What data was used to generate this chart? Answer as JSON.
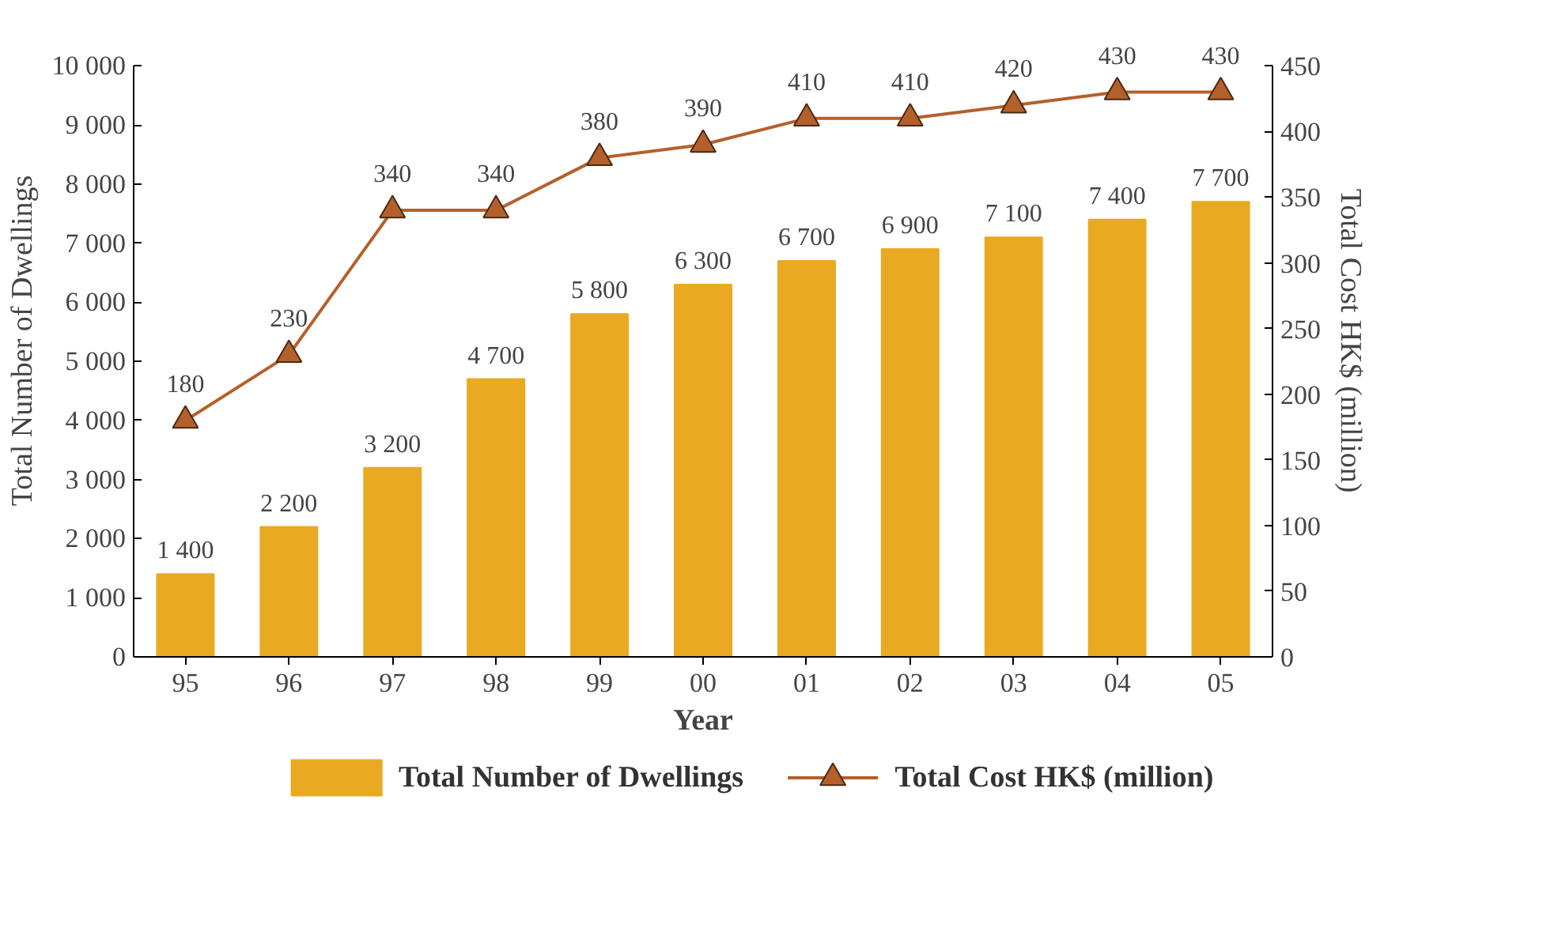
{
  "chart_data": {
    "type": "bar",
    "xlabel": "Year",
    "ylabel": "Total Number of Dwellings",
    "y2label": "Total Cost HK$ (million)",
    "categories": [
      "95",
      "96",
      "97",
      "98",
      "99",
      "00",
      "01",
      "02",
      "03",
      "04",
      "05"
    ],
    "series": [
      {
        "name": "Total Number of Dwellings",
        "color": "#e9aa22",
        "values": [
          1400,
          2200,
          3200,
          4700,
          5800,
          6300,
          6700,
          6900,
          7100,
          7400,
          7700
        ],
        "value_labels": [
          "1 400",
          "2 200",
          "3 200",
          "4 700",
          "5 800",
          "6 300",
          "6 700",
          "6 900",
          "7 100",
          "7 400",
          "7 700"
        ]
      },
      {
        "name": "Total Cost HK$ (million)",
        "type": "line",
        "axis": "y2",
        "color": "#b4602c",
        "marker": "triangle",
        "values": [
          180,
          230,
          340,
          340,
          380,
          390,
          410,
          410,
          420,
          430,
          430
        ],
        "value_labels": [
          "180",
          "230",
          "340",
          "340",
          "380",
          "390",
          "410",
          "410",
          "420",
          "430",
          "430"
        ]
      }
    ],
    "ylim": [
      0,
      10000
    ],
    "yticks": [
      0,
      {
        "value": 1000,
        "label": "1 000"
      },
      {
        "value": 2000,
        "label": "2 000"
      },
      {
        "value": 3000,
        "label": "3 000"
      },
      {
        "value": 4000,
        "label": "4 000"
      },
      {
        "value": 5000,
        "label": "5 000"
      },
      {
        "value": 6000,
        "label": "6 000"
      },
      {
        "value": 7000,
        "label": "7 000"
      },
      {
        "value": 8000,
        "label": "8 000"
      },
      {
        "value": 9000,
        "label": "9 000"
      },
      {
        "value": 10000,
        "label": "10 000"
      }
    ],
    "y2lim": [
      0,
      450
    ],
    "y2ticks": [
      0,
      50,
      100,
      150,
      200,
      250,
      300,
      350,
      400,
      450
    ],
    "grid": false,
    "legend": "bottom"
  }
}
